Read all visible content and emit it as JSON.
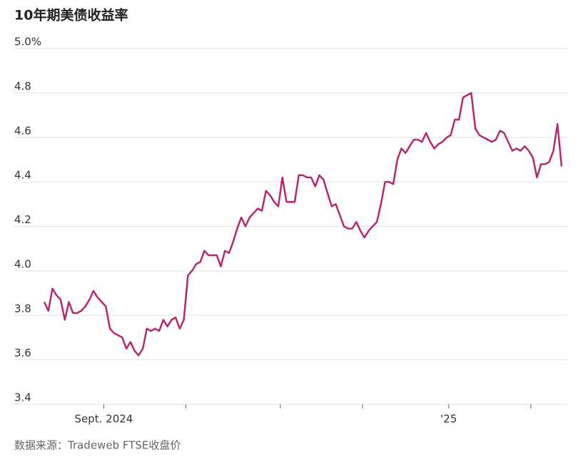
{
  "chart_data": {
    "type": "line",
    "title": "10年期美债收益率",
    "source": "数据来源：Tradeweb FTSE收盘价",
    "series": [
      {
        "name": "10年期美债收益率",
        "color": "#b5286f",
        "values": [
          3.86,
          3.82,
          3.92,
          3.89,
          3.87,
          3.78,
          3.86,
          3.81,
          3.81,
          3.82,
          3.84,
          3.87,
          3.91,
          3.88,
          3.86,
          3.84,
          3.74,
          3.72,
          3.71,
          3.7,
          3.65,
          3.68,
          3.64,
          3.62,
          3.65,
          3.74,
          3.73,
          3.74,
          3.73,
          3.78,
          3.75,
          3.78,
          3.79,
          3.74,
          3.78,
          3.98,
          4.0,
          4.03,
          4.04,
          4.09,
          4.07,
          4.07,
          4.07,
          4.02,
          4.09,
          4.08,
          4.13,
          4.19,
          4.24,
          4.2,
          4.24,
          4.26,
          4.28,
          4.27,
          4.36,
          4.34,
          4.31,
          4.29,
          4.42,
          4.31,
          4.31,
          4.31,
          4.43,
          4.43,
          4.42,
          4.42,
          4.38,
          4.43,
          4.41,
          4.35,
          4.29,
          4.3,
          4.25,
          4.2,
          4.19,
          4.19,
          4.22,
          4.18,
          4.15,
          4.18,
          4.2,
          4.22,
          4.3,
          4.4,
          4.4,
          4.39,
          4.5,
          4.55,
          4.53,
          4.56,
          4.59,
          4.59,
          4.58,
          4.62,
          4.58,
          4.55,
          4.57,
          4.58,
          4.6,
          4.61,
          4.68,
          4.68,
          4.78,
          4.79,
          4.8,
          4.64,
          4.61,
          4.6,
          4.59,
          4.58,
          4.59,
          4.63,
          4.62,
          4.58,
          4.54,
          4.55,
          4.54,
          4.56,
          4.54,
          4.51,
          4.42,
          4.48,
          4.48,
          4.49,
          4.54,
          4.66,
          4.47
        ]
      }
    ],
    "xlim": [
      0,
      126
    ],
    "xticks": [
      {
        "value": 14.5,
        "label": "Sept. 2024"
      },
      {
        "value": 98.5,
        "label": "'25"
      }
    ],
    "xtick_marks": [
      34.5,
      57.5,
      77.5,
      118.5
    ],
    "ylim": [
      3.4,
      5.0
    ],
    "yticks": [
      {
        "value": 5.0,
        "label": "5.0%"
      },
      4.8,
      4.6,
      4.4,
      4.2,
      {
        "value": 4.0,
        "label": "4.0"
      },
      3.8,
      3.6,
      3.4
    ],
    "grid": true
  }
}
